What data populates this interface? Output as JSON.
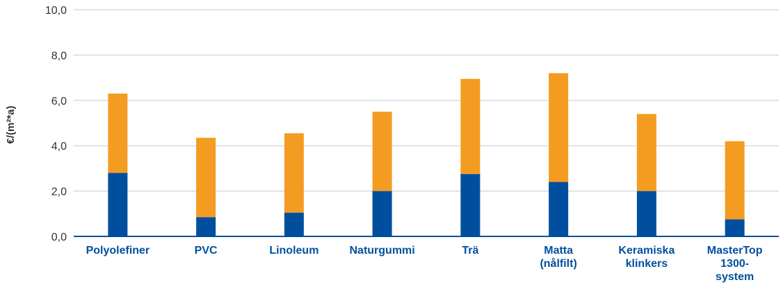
{
  "chart_data": {
    "type": "bar",
    "stacked": true,
    "ylabel": "€/(m²*a)",
    "ylim": [
      0,
      10
    ],
    "yticks": [
      "0,0",
      "2,0",
      "4,0",
      "6,0",
      "8,0",
      "10,0"
    ],
    "grid": true,
    "categories": [
      "Polyolefiner",
      "PVC",
      "Linoleum",
      "Naturgummi",
      "Trä",
      "Matta\n(nålfilt)",
      "Keramiska\nklinkers",
      "MasterTop\n1300-\nsystem"
    ],
    "series": [
      {
        "color": "#004f9f",
        "values": [
          2.8,
          0.85,
          1.05,
          2.0,
          2.75,
          2.4,
          2.0,
          0.75
        ]
      },
      {
        "color": "#f49c22",
        "values": [
          3.5,
          3.5,
          3.5,
          3.5,
          4.2,
          4.8,
          3.4,
          3.45
        ]
      }
    ]
  }
}
